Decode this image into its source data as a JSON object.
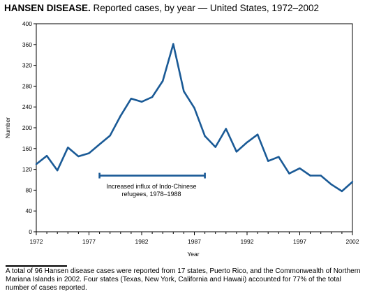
{
  "title": {
    "bold": "HANSEN DISEASE.",
    "rest": " Reported cases, by year — United States, 1972–2002"
  },
  "footnote": "A total of 96 Hansen disease cases were reported from 17 states, Puerto Rico, and the Commonwealth of Northern Mariana Islands in 2002. Four states (Texas, New York, California and Hawaii) accounted for 77% of the total number of cases reported.",
  "colors": {
    "line": "#1a5a96",
    "axis": "#000000"
  },
  "chart_data": {
    "type": "line",
    "title": "HANSEN DISEASE. Reported cases, by year — United States, 1972–2002",
    "xlabel": "Year",
    "ylabel": "Number",
    "xlim": [
      1972,
      2002
    ],
    "ylim": [
      0,
      400
    ],
    "xticks": [
      "1972",
      "1977",
      "1982",
      "1987",
      "1992",
      "1997",
      "2002"
    ],
    "yticks": [
      "0",
      "40",
      "80",
      "120",
      "160",
      "200",
      "240",
      "280",
      "320",
      "360",
      "400"
    ],
    "grid": false,
    "x": [
      1972,
      1973,
      1974,
      1975,
      1976,
      1977,
      1978,
      1979,
      1980,
      1981,
      1982,
      1983,
      1984,
      1985,
      1986,
      1987,
      1988,
      1989,
      1990,
      1991,
      1992,
      1993,
      1994,
      1995,
      1996,
      1997,
      1998,
      1999,
      2000,
      2001,
      2002
    ],
    "series": [
      {
        "values": [
          130,
          146,
          118,
          162,
          145,
          151,
          168,
          185,
          223,
          256,
          250,
          259,
          290,
          361,
          270,
          238,
          184,
          163,
          198,
          154,
          172,
          187,
          136,
          144,
          112,
          122,
          108,
          108,
          91,
          78,
          96
        ]
      }
    ],
    "annotation": {
      "text_line1": "Increased influx of Indo-Chinese",
      "text_line2": "refugees, 1978–1988",
      "range": [
        1978,
        1988
      ],
      "y": 108
    }
  }
}
